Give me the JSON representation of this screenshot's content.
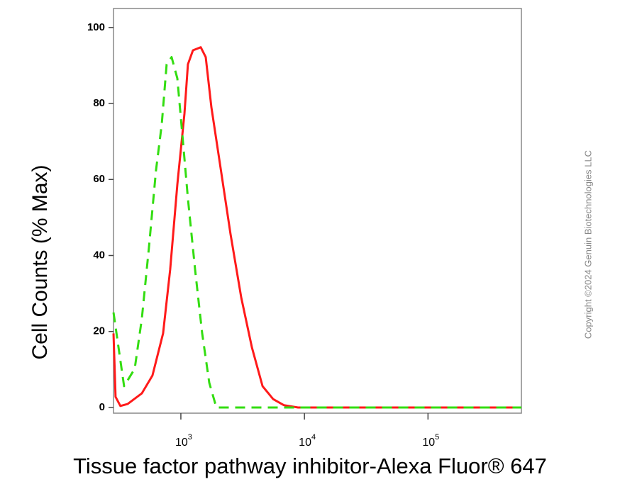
{
  "chart_data": {
    "type": "line",
    "x_label": "Tissue factor pathway inhibitor-Alexa Fluor® 647",
    "y_label": "Cell Counts (% Max)",
    "copyright": "Copyright ©2024 Genuin Biotechnologies LLC",
    "xscale": "log",
    "xlim": [
      285,
      570000
    ],
    "ylim": [
      -1.5,
      105
    ],
    "xticks": [
      {
        "value": 1000,
        "label": "10",
        "exponent": "3"
      },
      {
        "value": 10000,
        "label": "10",
        "exponent": "4"
      },
      {
        "value": 100000,
        "label": "10",
        "exponent": "5"
      }
    ],
    "yticks": [
      0,
      20,
      40,
      60,
      80,
      100
    ],
    "series": [
      {
        "color": "#ff1a1a",
        "dash": false,
        "x": [
          285,
          296,
          324,
          371,
          483,
          589,
          718,
          820,
          936,
          1069,
          1141,
          1252,
          1449,
          1589,
          1767,
          2071,
          2525,
          3081,
          3757,
          4581,
          5587,
          6813,
          8873,
          25600,
          96200,
          570000
        ],
        "values": [
          19.5,
          2.8,
          0.4,
          0.9,
          3.7,
          8.4,
          19.5,
          36.3,
          58.7,
          77.3,
          90.3,
          94,
          94.8,
          92.2,
          79,
          64.2,
          45.6,
          28.9,
          15.8,
          5.6,
          2.2,
          0.6,
          0,
          0,
          0,
          0
        ]
      },
      {
        "color": "#33dd11",
        "dash": true,
        "x": [
          285,
          347,
          423,
          483,
          551,
          629,
          700,
          767,
          841,
          936,
          1041,
          1141,
          1303,
          1487,
          1698,
          1937,
          6813,
          96200,
          570000
        ],
        "values": [
          25,
          5.6,
          10.2,
          23.3,
          42,
          62.4,
          74.5,
          90.3,
          92.2,
          86.6,
          69.8,
          55,
          36.3,
          19.5,
          6.5,
          0,
          0,
          0,
          0
        ]
      }
    ]
  }
}
